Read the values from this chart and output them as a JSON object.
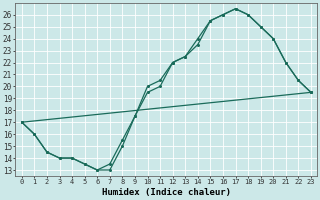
{
  "xlabel": "Humidex (Indice chaleur)",
  "bg_color": "#cce8e8",
  "grid_color": "#b8d8d8",
  "line_color": "#1a6b5a",
  "xlim": [
    -0.5,
    23.5
  ],
  "ylim": [
    12.5,
    27.0
  ],
  "xticks": [
    0,
    1,
    2,
    3,
    4,
    5,
    6,
    7,
    8,
    9,
    10,
    11,
    12,
    13,
    14,
    15,
    16,
    17,
    18,
    19,
    20,
    21,
    22,
    23
  ],
  "yticks": [
    13,
    14,
    15,
    16,
    17,
    18,
    19,
    20,
    21,
    22,
    23,
    24,
    25,
    26
  ],
  "line1_x": [
    0,
    1,
    2,
    3,
    4,
    5,
    6,
    7,
    8,
    9,
    10,
    11,
    12,
    13,
    14,
    15,
    16,
    17,
    18,
    19,
    20,
    21,
    22,
    23
  ],
  "line1_y": [
    17,
    16,
    14.5,
    14,
    14,
    13.5,
    13,
    13,
    15,
    17.5,
    19.5,
    20,
    22,
    22.5,
    23.5,
    25.5,
    26,
    26.5,
    26,
    25,
    24,
    22,
    20.5,
    19.5
  ],
  "line2_x": [
    0,
    23
  ],
  "line2_y": [
    17,
    19.5
  ],
  "line3_x": [
    0,
    1,
    2,
    3,
    4,
    5,
    6,
    7,
    8,
    9,
    10,
    11,
    12,
    13,
    14,
    15,
    16,
    17,
    18,
    19,
    20,
    21,
    22,
    23
  ],
  "line3_y": [
    17,
    16,
    14.5,
    14,
    14,
    13.5,
    13,
    13.5,
    15.5,
    17.5,
    20,
    20.5,
    22,
    22.5,
    24,
    25.5,
    26,
    26.5,
    26,
    25,
    24,
    22,
    20.5,
    19.5
  ]
}
